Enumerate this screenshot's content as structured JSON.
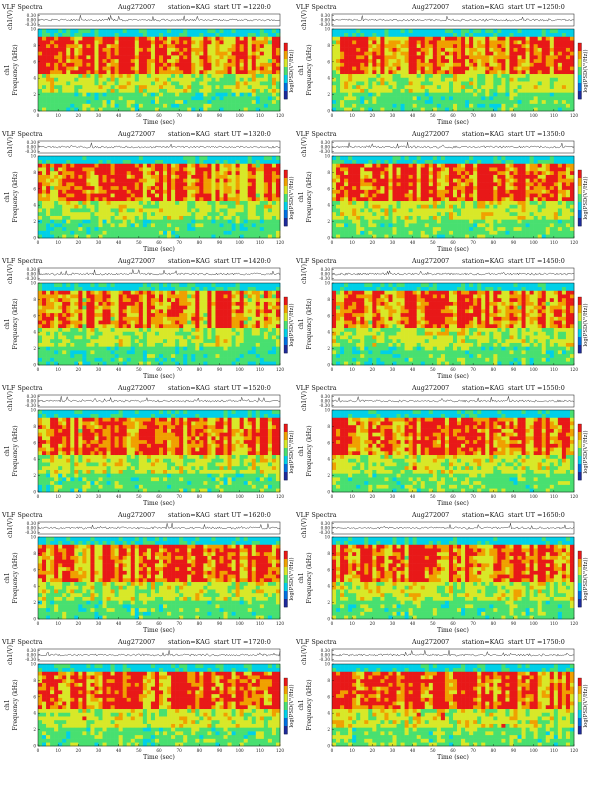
{
  "page": {
    "header": {
      "instrument": "VLF Spectra",
      "date": "Aug272007",
      "station": "station=KAG",
      "start_prefix": "start  UT ="
    },
    "labels": {
      "waveform_ylabel": "ch1(V)",
      "spectrogram_ylabel_channel": "ch1",
      "spectrogram_ylabel": "Frequency (kHz)",
      "xlabel": "Time (sec)",
      "colorbar_label": "log(PSD(V²/Hz))"
    },
    "colors": {
      "spectrum": [
        "#1c2a9a",
        "#0070e0",
        "#00d0e8",
        "#48e070",
        "#d8e828",
        "#f0a000",
        "#e81818",
        "#ffffff"
      ],
      "trace": "#222222",
      "axes": "#111111"
    }
  },
  "chart_data": [
    {
      "type": "heatmap",
      "start_ut": "1220:0",
      "intensity": 0.58,
      "xlim": [
        0,
        120
      ],
      "ylim": [
        0,
        10
      ],
      "waveform_ylim": [
        -0.3,
        0.3
      ],
      "xticks": [
        0,
        10,
        20,
        30,
        40,
        50,
        60,
        70,
        80,
        90,
        100,
        110,
        120
      ],
      "yticks": [
        0,
        2,
        4,
        6,
        8,
        10
      ],
      "waveform_yticks": [
        "0.30",
        "0.00",
        "-0.30"
      ]
    },
    {
      "type": "heatmap",
      "start_ut": "1250:0",
      "intensity": 0.6,
      "xlim": [
        0,
        120
      ],
      "ylim": [
        0,
        10
      ],
      "waveform_ylim": [
        -0.3,
        0.3
      ],
      "xticks": [
        0,
        10,
        20,
        30,
        40,
        50,
        60,
        70,
        80,
        90,
        100,
        110,
        120
      ],
      "yticks": [
        0,
        2,
        4,
        6,
        8,
        10
      ],
      "waveform_yticks": [
        "0.30",
        "0.00",
        "-0.30"
      ]
    },
    {
      "type": "heatmap",
      "start_ut": "1320:0",
      "intensity": 0.56,
      "xlim": [
        0,
        120
      ],
      "ylim": [
        0,
        10
      ],
      "waveform_ylim": [
        -0.3,
        0.3
      ],
      "xticks": [
        0,
        10,
        20,
        30,
        40,
        50,
        60,
        70,
        80,
        90,
        100,
        110,
        120
      ],
      "yticks": [
        0,
        2,
        4,
        6,
        8,
        10
      ],
      "waveform_yticks": [
        "0.30",
        "0.00",
        "-0.30"
      ]
    },
    {
      "type": "heatmap",
      "start_ut": "1350:0",
      "intensity": 0.64,
      "xlim": [
        0,
        120
      ],
      "ylim": [
        0,
        10
      ],
      "waveform_ylim": [
        -0.3,
        0.3
      ],
      "xticks": [
        0,
        10,
        20,
        30,
        40,
        50,
        60,
        70,
        80,
        90,
        100,
        110,
        120
      ],
      "yticks": [
        0,
        2,
        4,
        6,
        8,
        10
      ],
      "waveform_yticks": [
        "0.30",
        "0.00",
        "-0.30"
      ]
    },
    {
      "type": "heatmap",
      "start_ut": "1420:0",
      "intensity": 0.54,
      "xlim": [
        0,
        120
      ],
      "ylim": [
        0,
        10
      ],
      "waveform_ylim": [
        -0.3,
        0.3
      ],
      "xticks": [
        0,
        10,
        20,
        30,
        40,
        50,
        60,
        70,
        80,
        90,
        100,
        110,
        120
      ],
      "yticks": [
        0,
        2,
        4,
        6,
        8,
        10
      ],
      "waveform_yticks": [
        "0.30",
        "0.00",
        "-0.30"
      ]
    },
    {
      "type": "heatmap",
      "start_ut": "1450:0",
      "intensity": 0.58,
      "xlim": [
        0,
        120
      ],
      "ylim": [
        0,
        10
      ],
      "waveform_ylim": [
        -0.3,
        0.3
      ],
      "xticks": [
        0,
        10,
        20,
        30,
        40,
        50,
        60,
        70,
        80,
        90,
        100,
        110,
        120
      ],
      "yticks": [
        0,
        2,
        4,
        6,
        8,
        10
      ],
      "waveform_yticks": [
        "0.30",
        "0.00",
        "-0.30"
      ]
    },
    {
      "type": "heatmap",
      "start_ut": "1520:0",
      "intensity": 0.6,
      "xlim": [
        0,
        120
      ],
      "ylim": [
        0,
        10
      ],
      "waveform_ylim": [
        -0.3,
        0.3
      ],
      "xticks": [
        0,
        10,
        20,
        30,
        40,
        50,
        60,
        70,
        80,
        90,
        100,
        110,
        120
      ],
      "yticks": [
        0,
        2,
        4,
        6,
        8,
        10
      ],
      "waveform_yticks": [
        "0.30",
        "0.00",
        "-0.30"
      ]
    },
    {
      "type": "heatmap",
      "start_ut": "1550:0",
      "intensity": 0.66,
      "xlim": [
        0,
        120
      ],
      "ylim": [
        0,
        10
      ],
      "waveform_ylim": [
        -0.3,
        0.3
      ],
      "xticks": [
        0,
        10,
        20,
        30,
        40,
        50,
        60,
        70,
        80,
        90,
        100,
        110,
        120
      ],
      "yticks": [
        0,
        2,
        4,
        6,
        8,
        10
      ],
      "waveform_yticks": [
        "0.30",
        "0.00",
        "-0.30"
      ]
    },
    {
      "type": "heatmap",
      "start_ut": "1620:0",
      "intensity": 0.6,
      "xlim": [
        0,
        120
      ],
      "ylim": [
        0,
        10
      ],
      "waveform_ylim": [
        -0.3,
        0.3
      ],
      "xticks": [
        0,
        10,
        20,
        30,
        40,
        50,
        60,
        70,
        80,
        90,
        100,
        110,
        120
      ],
      "yticks": [
        0,
        2,
        4,
        6,
        8,
        10
      ],
      "waveform_yticks": [
        "0.30",
        "0.00",
        "-0.30"
      ]
    },
    {
      "type": "heatmap",
      "start_ut": "1650:0",
      "intensity": 0.62,
      "xlim": [
        0,
        120
      ],
      "ylim": [
        0,
        10
      ],
      "waveform_ylim": [
        -0.3,
        0.3
      ],
      "xticks": [
        0,
        10,
        20,
        30,
        40,
        50,
        60,
        70,
        80,
        90,
        100,
        110,
        120
      ],
      "yticks": [
        0,
        2,
        4,
        6,
        8,
        10
      ],
      "waveform_yticks": [
        "0.30",
        "0.00",
        "-0.30"
      ]
    },
    {
      "type": "heatmap",
      "start_ut": "1720:0",
      "intensity": 0.64,
      "xlim": [
        0,
        120
      ],
      "ylim": [
        0,
        10
      ],
      "waveform_ylim": [
        -0.3,
        0.3
      ],
      "xticks": [
        0,
        10,
        20,
        30,
        40,
        50,
        60,
        70,
        80,
        90,
        100,
        110,
        120
      ],
      "yticks": [
        0,
        2,
        4,
        6,
        8,
        10
      ],
      "waveform_yticks": [
        "0.30",
        "0.00",
        "-0.30"
      ]
    },
    {
      "type": "heatmap",
      "start_ut": "1750:0",
      "intensity": 0.68,
      "xlim": [
        0,
        120
      ],
      "ylim": [
        0,
        10
      ],
      "waveform_ylim": [
        -0.3,
        0.3
      ],
      "xticks": [
        0,
        10,
        20,
        30,
        40,
        50,
        60,
        70,
        80,
        90,
        100,
        110,
        120
      ],
      "yticks": [
        0,
        2,
        4,
        6,
        8,
        10
      ],
      "waveform_yticks": [
        "0.30",
        "0.00",
        "-0.30"
      ]
    }
  ]
}
